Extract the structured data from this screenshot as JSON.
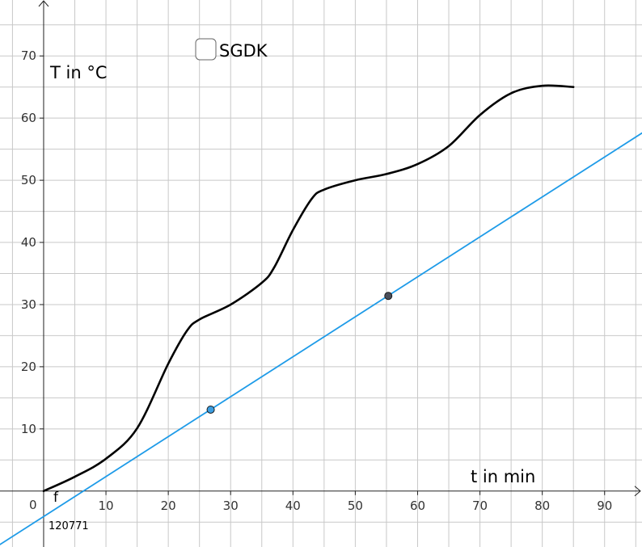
{
  "chart_data": {
    "type": "line",
    "xlabel": "t in min",
    "ylabel": "T in °C",
    "xlim": [
      -7,
      96
    ],
    "ylim": [
      -9,
      79
    ],
    "x_ticks": [
      10,
      20,
      30,
      40,
      50,
      60,
      70,
      80,
      90
    ],
    "y_ticks": [
      10,
      20,
      30,
      40,
      50,
      60,
      70
    ],
    "origin_label": "0",
    "grid": true,
    "series": [
      {
        "color": "#000000",
        "points": [
          [
            0,
            0
          ],
          [
            5,
            2.3
          ],
          [
            10,
            5.2
          ],
          [
            15,
            10.1
          ],
          [
            20,
            20.5
          ],
          [
            23,
            25.8
          ],
          [
            25,
            27.6
          ],
          [
            30,
            30
          ],
          [
            35,
            33.5
          ],
          [
            37,
            36
          ],
          [
            40,
            42
          ],
          [
            43,
            47
          ],
          [
            45,
            48.5
          ],
          [
            50,
            50
          ],
          [
            55,
            51
          ],
          [
            60,
            52.6
          ],
          [
            65,
            55.5
          ],
          [
            70,
            60.5
          ],
          [
            75,
            64
          ],
          [
            80,
            65.2
          ],
          [
            85,
            65
          ]
        ]
      },
      {
        "name": "f",
        "color": "#1e9be8",
        "points": [
          [
            -7,
            -8.6
          ],
          [
            96,
            57.6
          ]
        ]
      }
    ],
    "markers": [
      {
        "x": 26.8,
        "y": 13.1,
        "fill": "#3b9de0"
      },
      {
        "x": 55.3,
        "y": 31.4,
        "fill": "#4a4e5a"
      }
    ],
    "annotation": "120771"
  },
  "checkbox": {
    "label": "SGDK",
    "checked": false
  }
}
